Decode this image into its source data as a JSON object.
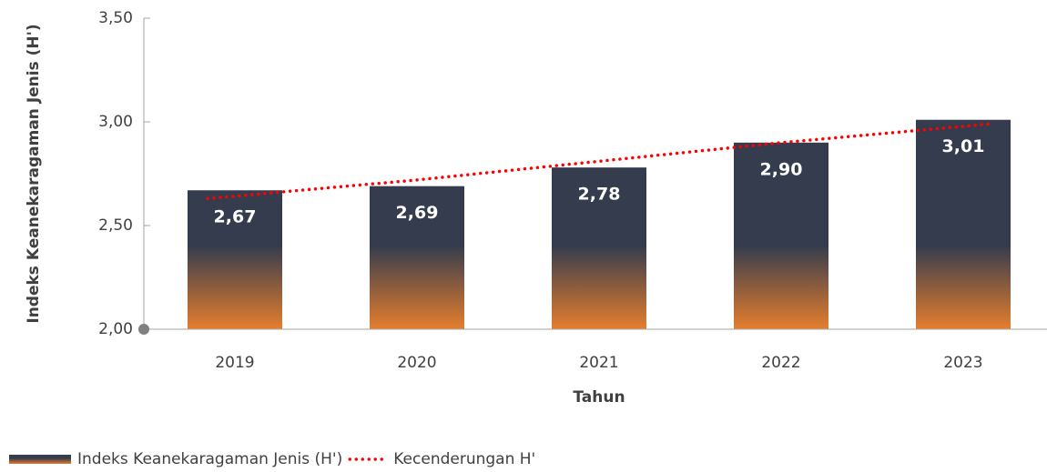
{
  "chart_data": {
    "type": "bar",
    "x_label": "Tahun",
    "y_label": "Indeks Keanekaragaman Jenis (H')",
    "categories": [
      "2019",
      "2020",
      "2021",
      "2022",
      "2023"
    ],
    "series": [
      {
        "name": "Indeks Keanekaragaman Jenis (H')",
        "type": "bar",
        "color": "#343c4e",
        "color_bottom": "#e67e2e",
        "values": [
          2.67,
          2.69,
          2.78,
          2.9,
          3.01
        ],
        "value_labels": [
          "2,67",
          "2,69",
          "2,78",
          "2,90",
          "3,01"
        ]
      },
      {
        "name": "Kecenderungan H'",
        "type": "line",
        "style": "dotted",
        "color": "#ff0000",
        "values": [
          2.63,
          2.72,
          2.81,
          2.9,
          2.99
        ]
      }
    ],
    "ylim": [
      2.0,
      3.5
    ],
    "yticks": [
      {
        "value": 2.0,
        "label": "2,00"
      },
      {
        "value": 2.5,
        "label": "2,50"
      },
      {
        "value": 3.0,
        "label": "3,00"
      },
      {
        "value": 3.5,
        "label": "3,50"
      }
    ],
    "grid": false,
    "legend": "bottom-left"
  }
}
